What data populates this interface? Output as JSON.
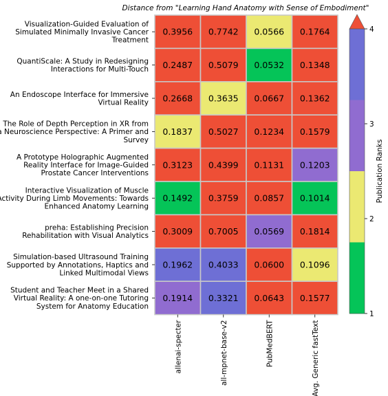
{
  "chart_data": {
    "type": "heatmap",
    "title": "Distance from \"Learning Hand Anatomy with Sense of Embodiment\"",
    "rows": [
      [
        "Visualization-Guided Evaluation of",
        "Simulated Minimally Invasive Cancer",
        "Treatment"
      ],
      [
        "QuantiScale: A Study in Redesigning",
        "Interactions for Multi-Touch"
      ],
      [
        "An Endoscope Interface for Immersive",
        "Virtual Reality"
      ],
      [
        "The Role of Depth Perception in XR from",
        "a Neuroscience Perspective: A Primer and",
        "Survey"
      ],
      [
        "A Prototype Holographic Augmented",
        "Reality Interface for Image-Guided",
        "Prostate Cancer Interventions"
      ],
      [
        "Interactive Visualization of Muscle",
        "Activity During Limb Movements: Towards",
        "Enhanced Anatomy Learning"
      ],
      [
        "preha: Establishing Precision",
        "Rehabilitation with Visual Analytics"
      ],
      [
        "Simulation-based Ultrasound Training",
        "Supported by Annotations, Haptics and",
        "Linked Multimodal Views"
      ],
      [
        "Student and Teacher Meet in a Shared",
        "Virtual Reality: A one-on-one Tutoring",
        "System for Anatomy Education"
      ]
    ],
    "columns": [
      "allenai-specter",
      "all-mpnet-base-v2",
      "PubMedBERT",
      "Avg. Generic fastText"
    ],
    "values": [
      [
        "0.3956",
        "0.7742",
        "0.0566",
        "0.1764"
      ],
      [
        "0.2487",
        "0.5079",
        "0.0532",
        "0.1348"
      ],
      [
        "0.2668",
        "0.3635",
        "0.0667",
        "0.1362"
      ],
      [
        "0.1837",
        "0.5027",
        "0.1234",
        "0.1579"
      ],
      [
        "0.3123",
        "0.4399",
        "0.1131",
        "0.1203"
      ],
      [
        "0.1492",
        "0.3759",
        "0.0857",
        "0.1014"
      ],
      [
        "0.3009",
        "0.7005",
        "0.0569",
        "0.1814"
      ],
      [
        "0.1962",
        "0.4033",
        "0.0600",
        "0.1096"
      ],
      [
        "0.1914",
        "0.3321",
        "0.0643",
        "0.1577"
      ]
    ],
    "ranks": [
      [
        5,
        5,
        2,
        5
      ],
      [
        5,
        5,
        1,
        5
      ],
      [
        5,
        2,
        5,
        5
      ],
      [
        2,
        5,
        5,
        5
      ],
      [
        5,
        5,
        5,
        3
      ],
      [
        1,
        5,
        5,
        1
      ],
      [
        5,
        5,
        3,
        5
      ],
      [
        4,
        4,
        5,
        2
      ],
      [
        3,
        4,
        5,
        5
      ]
    ],
    "colorbar": {
      "label": "Publication Ranks",
      "ticks": [
        "1",
        "2",
        "3",
        "4"
      ],
      "colors": {
        "1": "#05c458",
        "2": "#ebe972",
        "3": "#906cd0",
        "4": "#6e6fd5",
        "5": "#ee4f36"
      }
    },
    "grid_line_color": "#c8c8c8"
  }
}
